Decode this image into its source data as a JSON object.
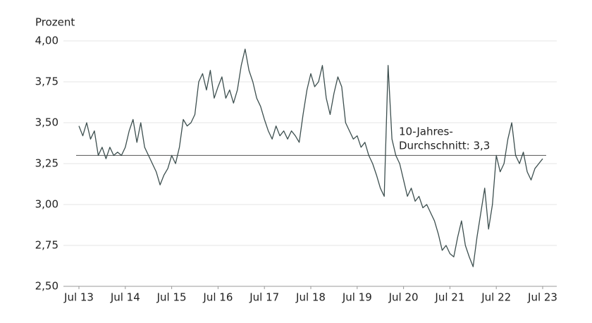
{
  "chart_data": {
    "type": "line",
    "y_axis_label": "Prozent",
    "xlim": [
      0,
      120
    ],
    "xticks": [
      {
        "value": 0,
        "label": "Jul 13"
      },
      {
        "value": 12,
        "label": "Jul 14"
      },
      {
        "value": 24,
        "label": "Jul 15"
      },
      {
        "value": 36,
        "label": "Jul 16"
      },
      {
        "value": 48,
        "label": "Jul 17"
      },
      {
        "value": 60,
        "label": "Jul 18"
      },
      {
        "value": 72,
        "label": "Jul 19"
      },
      {
        "value": 84,
        "label": "Jul 20"
      },
      {
        "value": 96,
        "label": "Jul 21"
      },
      {
        "value": 108,
        "label": "Jul 22"
      },
      {
        "value": 120,
        "label": "Jul 23"
      }
    ],
    "ylim": [
      2.5,
      4.0
    ],
    "yticks": [
      {
        "value": 2.5,
        "label": "2,50"
      },
      {
        "value": 2.75,
        "label": "2,75"
      },
      {
        "value": 3.0,
        "label": "3,00"
      },
      {
        "value": 3.25,
        "label": "3,25"
      },
      {
        "value": 3.5,
        "label": "3,50"
      },
      {
        "value": 3.75,
        "label": "3,75"
      },
      {
        "value": 4.0,
        "label": "4,00"
      }
    ],
    "grid": true,
    "color": "#3d4f4f",
    "values": [
      3.48,
      3.42,
      3.5,
      3.4,
      3.45,
      3.3,
      3.35,
      3.28,
      3.35,
      3.3,
      3.32,
      3.3,
      3.35,
      3.45,
      3.52,
      3.38,
      3.5,
      3.35,
      3.3,
      3.25,
      3.2,
      3.12,
      3.18,
      3.22,
      3.3,
      3.25,
      3.35,
      3.52,
      3.48,
      3.5,
      3.55,
      3.75,
      3.8,
      3.7,
      3.82,
      3.65,
      3.72,
      3.78,
      3.65,
      3.7,
      3.62,
      3.7,
      3.85,
      3.95,
      3.82,
      3.75,
      3.65,
      3.6,
      3.52,
      3.45,
      3.4,
      3.48,
      3.42,
      3.45,
      3.4,
      3.45,
      3.42,
      3.38,
      3.55,
      3.7,
      3.8,
      3.72,
      3.75,
      3.85,
      3.65,
      3.55,
      3.68,
      3.78,
      3.72,
      3.5,
      3.45,
      3.4,
      3.42,
      3.35,
      3.38,
      3.3,
      3.25,
      3.18,
      3.1,
      3.05,
      3.85,
      3.4,
      3.3,
      3.25,
      3.15,
      3.05,
      3.1,
      3.02,
      3.05,
      2.98,
      3.0,
      2.95,
      2.9,
      2.82,
      2.72,
      2.75,
      2.7,
      2.68,
      2.8,
      2.9,
      2.75,
      2.68,
      2.62,
      2.8,
      2.95,
      3.1,
      2.85,
      3.0,
      3.3,
      3.2,
      3.25,
      3.4,
      3.5,
      3.3,
      3.25,
      3.32,
      3.2,
      3.15,
      3.22,
      3.25,
      3.28
    ],
    "reference_value": 3.3,
    "annotation": [
      "10-Jahres-",
      "Durchschnitt: 3,3"
    ]
  }
}
